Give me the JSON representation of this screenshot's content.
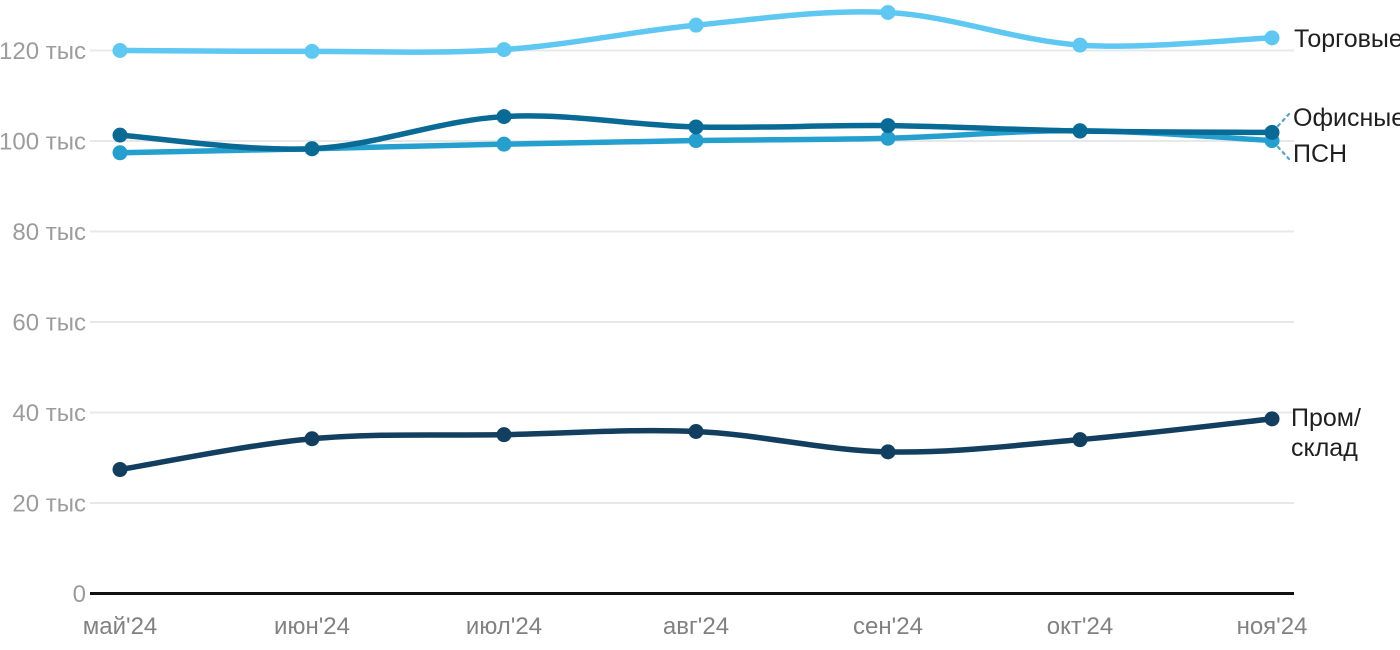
{
  "chart_data": {
    "type": "line",
    "title": "",
    "xlabel": "",
    "ylabel": "",
    "unit": "тыс",
    "grid": "horizontal-only",
    "legend_position": "right-of-line-ends",
    "ylim": [
      0,
      130
    ],
    "x_categories": [
      "май'24",
      "июн'24",
      "июл'24",
      "авг'24",
      "сен'24",
      "окт'24",
      "ноя'24"
    ],
    "y_ticks": [
      {
        "value": 120,
        "label": "120 тыс"
      },
      {
        "value": 100,
        "label": "100 тыс"
      },
      {
        "value": 80,
        "label": "80 тыс"
      },
      {
        "value": 60,
        "label": "60 тыс"
      },
      {
        "value": 40,
        "label": "40 тыс"
      },
      {
        "value": 20,
        "label": "20 тыс"
      },
      {
        "value": 0,
        "label": "0"
      }
    ],
    "series": [
      {
        "name": "Торговые",
        "color": "#5fc8f2",
        "values": [
          120.0,
          119.8,
          120.2,
          125.6,
          128.4,
          121.2,
          122.8
        ]
      },
      {
        "name": "ПСН",
        "color": "#25a0ce",
        "values": [
          97.4,
          98.3,
          99.3,
          100.1,
          100.6,
          102.3,
          100.1
        ]
      },
      {
        "name": "Офисные",
        "color": "#0a6a96",
        "values": [
          101.3,
          98.3,
          105.4,
          103.1,
          103.4,
          102.2,
          101.9
        ]
      },
      {
        "name": "Пром/склад",
        "color": "#123f5f",
        "values": [
          27.4,
          34.2,
          35.1,
          35.8,
          31.3,
          34.0,
          38.6
        ]
      }
    ]
  },
  "legend": {
    "torgovye": "Торговые",
    "ofisnye": "Офисные",
    "psn": "ПСН",
    "prom_line1": "Пром/",
    "prom_line2": "склад"
  },
  "colors": {
    "torgovye": "#5fc8f2",
    "psn": "#25a0ce",
    "ofisnye": "#0a6a96",
    "prom_sklad": "#123f5f",
    "gridline": "#e8e8e8",
    "axis_line": "#111111",
    "y_tick_text": "#9c9c9c",
    "x_tick_text": "#818181",
    "legend_text": "#1f1f1f",
    "callout_dash": "#4fa3ce"
  }
}
